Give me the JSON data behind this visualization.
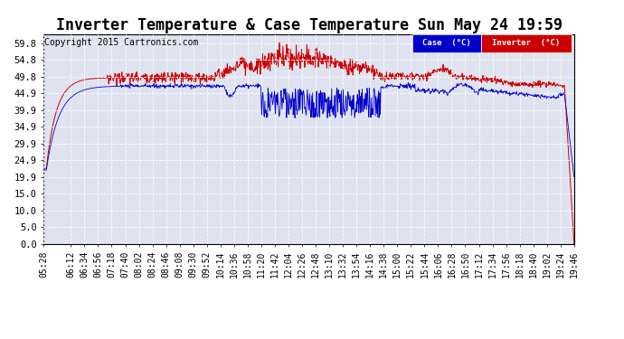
{
  "title": "Inverter Temperature & Case Temperature Sun May 24 19:59",
  "copyright": "Copyright 2015 Cartronics.com",
  "legend_case_label": "Case  (°C)",
  "legend_inverter_label": "Inverter  (°C)",
  "legend_case_color": "#0000cc",
  "legend_inverter_color": "#cc0000",
  "background_color": "#ffffff",
  "plot_bg_color": "#dfe3ef",
  "grid_color": "#ffffff",
  "yticks": [
    0.0,
    5.0,
    10.0,
    15.0,
    19.9,
    24.9,
    29.9,
    34.9,
    39.9,
    44.9,
    49.8,
    54.8,
    59.8
  ],
  "ymin": 0.0,
  "ymax": 62.5,
  "title_fontsize": 12,
  "axis_fontsize": 7.5,
  "copyright_fontsize": 7,
  "xtick_labels": [
    "05:28",
    "06:12",
    "06:34",
    "06:56",
    "07:18",
    "07:40",
    "08:02",
    "08:24",
    "08:46",
    "09:08",
    "09:30",
    "09:52",
    "10:14",
    "10:36",
    "10:58",
    "11:20",
    "11:42",
    "12:04",
    "12:26",
    "12:48",
    "13:10",
    "13:32",
    "13:54",
    "14:16",
    "14:38",
    "15:00",
    "15:22",
    "15:44",
    "16:06",
    "16:28",
    "16:50",
    "17:12",
    "17:34",
    "17:56",
    "18:18",
    "18:40",
    "19:02",
    "19:24",
    "19:46"
  ]
}
